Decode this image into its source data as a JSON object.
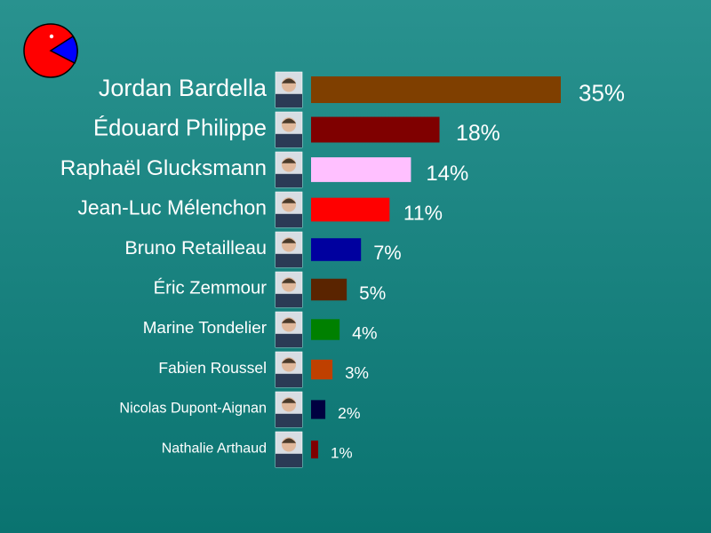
{
  "logo": {
    "icon": "pie-chart-logo-icon",
    "colors": {
      "body": "#ff0000",
      "wedge": "#0000ff",
      "outline": "#000000",
      "eye": "#ffffff"
    }
  },
  "chart_data": {
    "type": "bar",
    "orientation": "horizontal",
    "title": "",
    "xlabel": "",
    "ylabel": "",
    "xlim": [
      0,
      35
    ],
    "grid": false,
    "legend": "none",
    "categories": [
      "Jordan Bardella",
      "Édouard Philippe",
      "Raphaël Glucksmann",
      "Jean-Luc Mélenchon",
      "Bruno Retailleau",
      "Éric Zemmour",
      "Marine Tondelier",
      "Fabien Roussel",
      "Nicolas Dupont-Aignan",
      "Nathalie Arthaud"
    ],
    "values": [
      35,
      18,
      14,
      11,
      7,
      5,
      4,
      3,
      2,
      1
    ],
    "value_labels": [
      "35%",
      "18%",
      "14%",
      "11%",
      "7%",
      "5%",
      "4%",
      "3%",
      "2%",
      "1%"
    ],
    "colors": [
      "#7f3f00",
      "#7f0000",
      "#ffc0ff",
      "#ff0000",
      "#00009f",
      "#5a2400",
      "#008000",
      "#bf4000",
      "#000040",
      "#7f0000"
    ],
    "photo_icons": [
      "candidate-photo-icon",
      "candidate-photo-icon",
      "candidate-photo-icon",
      "candidate-photo-icon",
      "candidate-photo-icon",
      "candidate-photo-icon",
      "candidate-photo-icon",
      "candidate-photo-icon",
      "candidate-photo-icon",
      "candidate-photo-icon"
    ]
  }
}
